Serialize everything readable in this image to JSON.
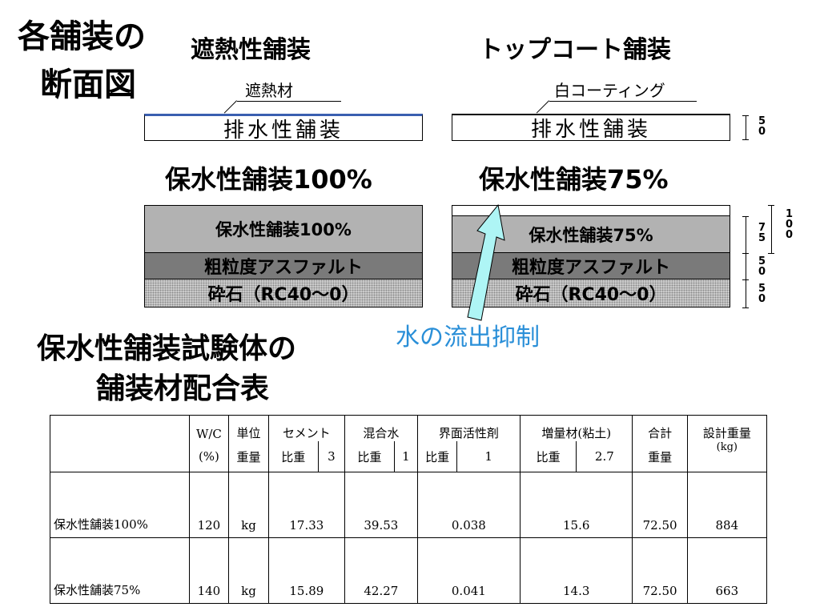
{
  "headings": {
    "cross_section": "各舗装の\n断面図",
    "cross_section_line1": "各舗装の",
    "cross_section_line2": "断面図",
    "heat_shield": "遮熱性舗装",
    "top_coat": "トップコート舗装",
    "water_retentive_100": "保水性舗装100%",
    "water_retentive_75": "保水性舗装75%",
    "mix_table_line1": "保水性舗装試験体の",
    "mix_table_line2": "舗装材配合表"
  },
  "labels": {
    "heat_shield_material": "遮熱材",
    "white_coating": "白コーティング",
    "water_outflow": "水の流出抑制"
  },
  "layers": {
    "drainage": "排水性舗装",
    "wr100": "保水性舗装100%",
    "wr75": "保水性舗装75%",
    "coarse_asphalt": "粗粒度アスファルト",
    "crushed_stone": "砕石（RC40～0）"
  },
  "dimensions": {
    "drainage_thickness": [
      "5",
      "0"
    ],
    "total_100": [
      "1",
      "0",
      "0"
    ],
    "wr75_thickness": [
      "7",
      "5"
    ],
    "coarse_thickness": [
      "5",
      "0"
    ],
    "stone_thickness": [
      "5",
      "0"
    ]
  },
  "colors": {
    "heat_shield_line": "#3a5fb0",
    "water_arrow": "#aef5f5",
    "water_text": "#2a8fd8",
    "layer_grey": "#b2b2b2",
    "layer_dark": "#7a7a7a"
  },
  "table": {
    "headers": {
      "wc": "W/C",
      "unit": "単位",
      "cement": "セメント",
      "mix_water": "混合水",
      "surfactant": "界面活性剤",
      "extender": "増量材(粘土)",
      "total": "合計",
      "design_weight": "設計重量",
      "design_weight_unit": "(kg)"
    },
    "subheaders": {
      "wc_unit": "(%)",
      "weight": "重量",
      "sg": "比重",
      "cement_sg": "3",
      "water_sg": "1",
      "surf_sg": "1",
      "ext_sg": "2.7",
      "total_weight": "重量"
    },
    "rows": [
      {
        "name": "保水性舗装100%",
        "wc": "120",
        "unit": "kg",
        "cement": "17.33",
        "water": "39.53",
        "surfactant": "0.038",
        "extender": "15.6",
        "total": "72.50",
        "design": "884"
      },
      {
        "name": "保水性舗装75%",
        "wc": "140",
        "unit": "kg",
        "cement": "15.89",
        "water": "42.27",
        "surfactant": "0.041",
        "extender": "14.3",
        "total": "72.50",
        "design": "663"
      }
    ]
  }
}
